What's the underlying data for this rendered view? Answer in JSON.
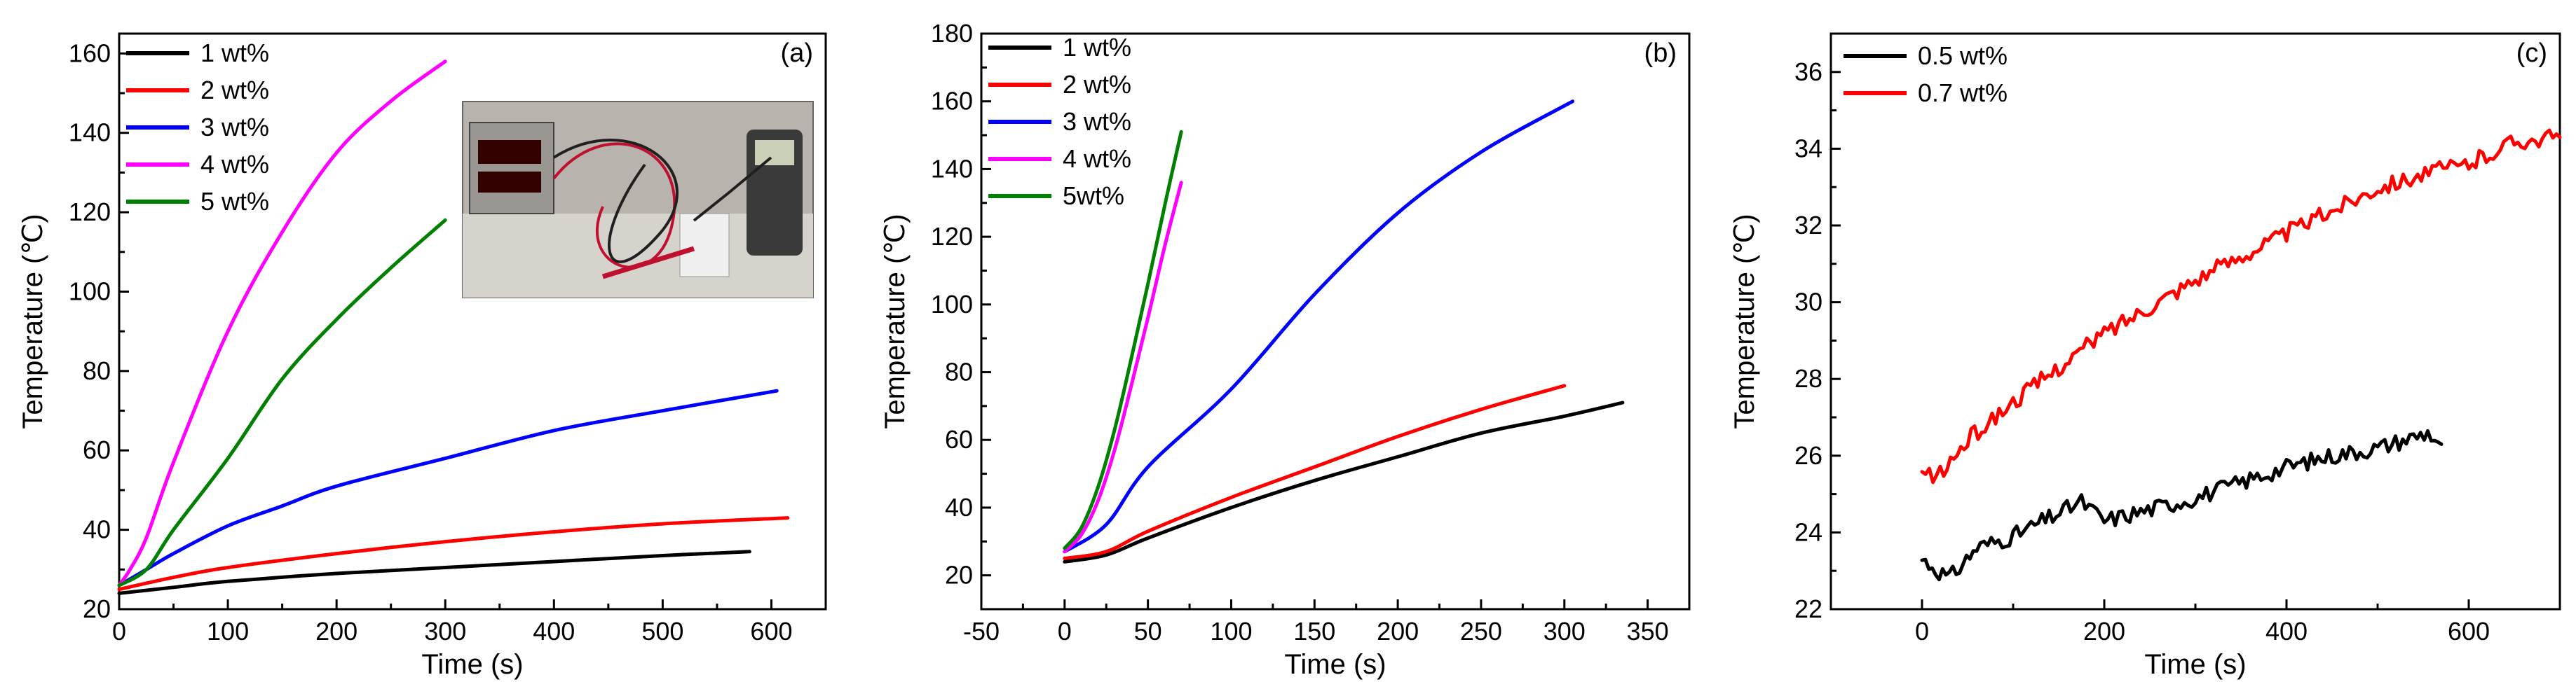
{
  "chart_data": [
    {
      "panel": "(a)",
      "type": "line",
      "xlabel": "Time (s)",
      "ylabel": "Temperature (℃)",
      "xlim": [
        0,
        650
      ],
      "ylim": [
        20,
        165
      ],
      "xticks": [
        0,
        100,
        200,
        300,
        400,
        500,
        600
      ],
      "yticks": [
        20,
        40,
        60,
        80,
        100,
        120,
        140,
        160
      ],
      "legend_position": "top-left",
      "inset": "photo of DC power supply connected with red/black probe wires to sample, with digital thermometer",
      "series": [
        {
          "name": "1 wt%",
          "color": "#000000",
          "x": [
            0,
            50,
            100,
            200,
            300,
            400,
            500,
            580
          ],
          "y": [
            24,
            25.5,
            27,
            29,
            30.5,
            32,
            33.5,
            34.5
          ]
        },
        {
          "name": "2 wt%",
          "color": "#ff0000",
          "x": [
            0,
            50,
            100,
            200,
            300,
            400,
            500,
            615
          ],
          "y": [
            25,
            28,
            30.5,
            34,
            37,
            39.5,
            41.5,
            43
          ]
        },
        {
          "name": "3 wt%",
          "color": "#0000ff",
          "x": [
            0,
            25,
            50,
            100,
            150,
            200,
            300,
            400,
            500,
            605
          ],
          "y": [
            26,
            30,
            34,
            41,
            46,
            51,
            58,
            65,
            70,
            75
          ]
        },
        {
          "name": "4 wt%",
          "color": "#ff00ff",
          "x": [
            0,
            10,
            25,
            50,
            100,
            150,
            200,
            250,
            300
          ],
          "y": [
            26,
            30,
            38,
            57,
            90,
            115,
            135,
            148,
            158
          ]
        },
        {
          "name": "5 wt%",
          "color": "#008000",
          "x": [
            0,
            25,
            50,
            100,
            150,
            200,
            250,
            300
          ],
          "y": [
            26,
            30,
            40,
            58,
            78,
            93,
            106,
            118
          ]
        }
      ]
    },
    {
      "panel": "(b)",
      "type": "line",
      "xlabel": "Time (s)",
      "ylabel": "Temperature (℃)",
      "xlim": [
        -50,
        375
      ],
      "ylim": [
        10,
        180
      ],
      "xticks": [
        -50,
        0,
        50,
        100,
        150,
        200,
        250,
        300,
        350
      ],
      "yticks": [
        20,
        40,
        60,
        80,
        100,
        120,
        140,
        160,
        180
      ],
      "legend_position": "top-left",
      "series": [
        {
          "name": "1 wt%",
          "color": "#000000",
          "x": [
            0,
            25,
            50,
            100,
            150,
            200,
            250,
            300,
            335
          ],
          "y": [
            24,
            26,
            31,
            40,
            48,
            55,
            62,
            67,
            71
          ]
        },
        {
          "name": "2 wt%",
          "color": "#ff0000",
          "x": [
            0,
            25,
            50,
            100,
            150,
            200,
            250,
            300
          ],
          "y": [
            25,
            27,
            33,
            43,
            52,
            61,
            69,
            76
          ]
        },
        {
          "name": "3 wt%",
          "color": "#0000ff",
          "x": [
            0,
            25,
            50,
            100,
            150,
            200,
            250,
            305
          ],
          "y": [
            27,
            35,
            52,
            75,
            103,
            127,
            145,
            160
          ]
        },
        {
          "name": "4 wt%",
          "color": "#ff00ff",
          "x": [
            0,
            10,
            20,
            30,
            40,
            50,
            60,
            70
          ],
          "y": [
            27,
            32,
            42,
            57,
            76,
            96,
            117,
            136
          ]
        },
        {
          "name": "5wt%",
          "color": "#008000",
          "x": [
            0,
            10,
            20,
            30,
            40,
            50,
            60,
            70
          ],
          "y": [
            28,
            34,
            46,
            63,
            84,
            106,
            129,
            151
          ]
        }
      ]
    },
    {
      "panel": "(c)",
      "type": "line",
      "xlabel": "Time (s)",
      "ylabel": "Temperature (℃)",
      "xlim": [
        -100,
        700
      ],
      "ylim": [
        22,
        37
      ],
      "xticks": [
        0,
        200,
        400,
        600
      ],
      "yticks": [
        22,
        24,
        26,
        28,
        30,
        32,
        34,
        36
      ],
      "legend_position": "top-left",
      "series": [
        {
          "name": "0.5 wt%",
          "color": "#000000",
          "noisy": true,
          "x": [
            0,
            30,
            60,
            100,
            175,
            200,
            300,
            400,
            450,
            500,
            555,
            570
          ],
          "y": [
            23.3,
            22.8,
            23.6,
            23.9,
            24.8,
            24.3,
            24.9,
            25.7,
            26.0,
            26.2,
            26.6,
            26.3
          ]
        },
        {
          "name": "0.7 wt%",
          "color": "#ff0000",
          "noisy": true,
          "x": [
            0,
            20,
            50,
            100,
            150,
            200,
            300,
            400,
            500,
            560,
            600,
            650,
            700
          ],
          "y": [
            25.5,
            25.5,
            26.4,
            27.4,
            28.3,
            29.2,
            30.6,
            31.8,
            33.0,
            33.4,
            33.6,
            34.2,
            34.3
          ]
        }
      ]
    }
  ]
}
